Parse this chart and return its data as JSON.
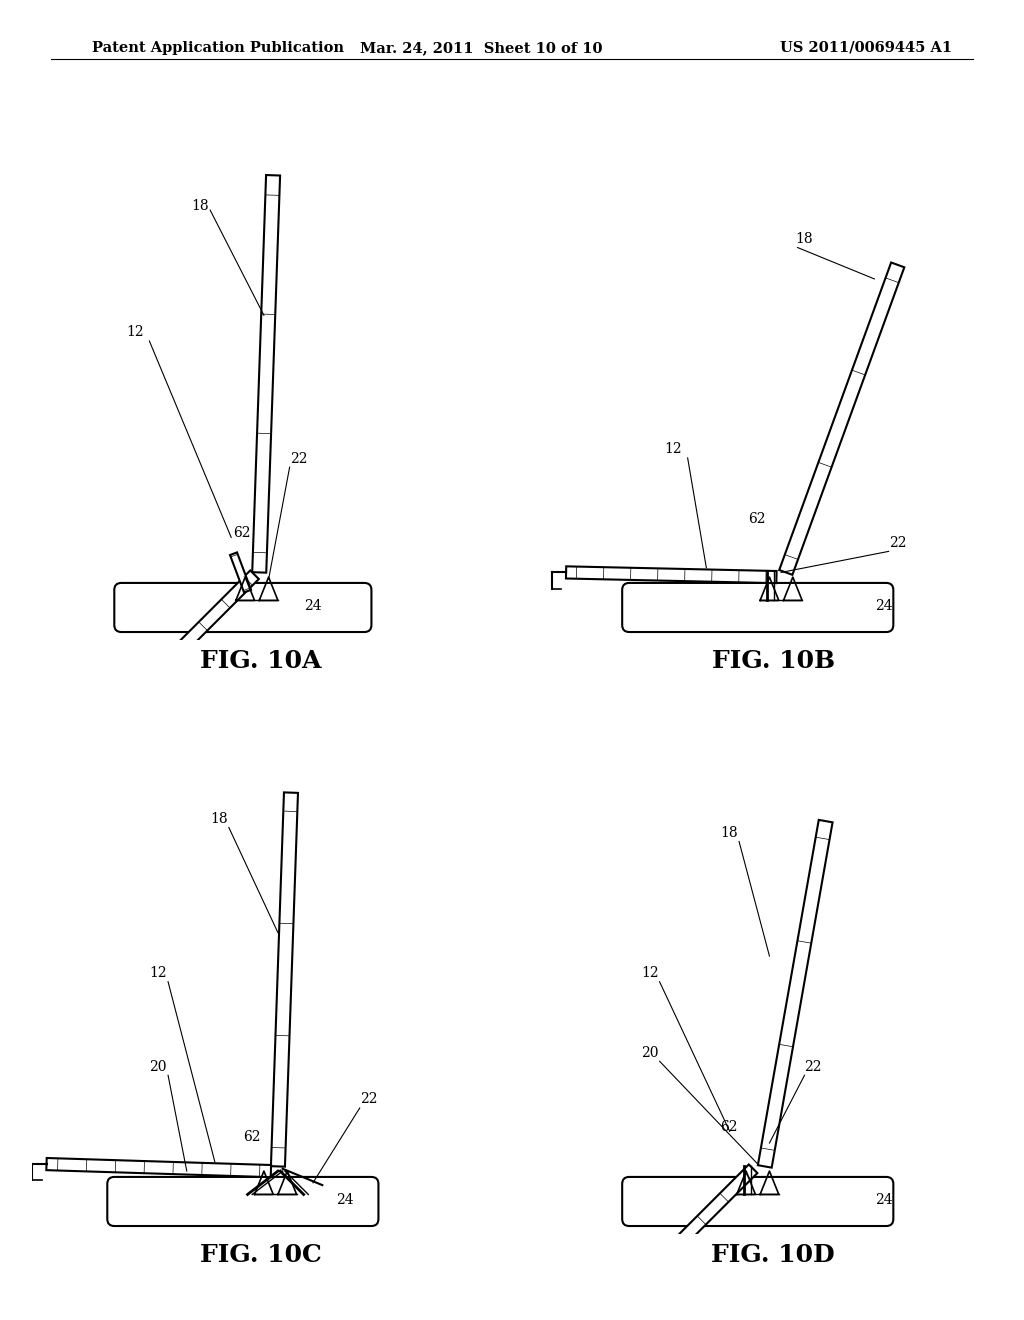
{
  "background_color": "#ffffff",
  "header_left": "Patent Application Publication",
  "header_center": "Mar. 24, 2011  Sheet 10 of 10",
  "header_right": "US 2011/0069445 A1",
  "header_fontsize": 10.5,
  "fig_labels": [
    "FIG. 10A",
    "FIG. 10B",
    "FIG. 10C",
    "FIG. 10D"
  ],
  "fig_label_fontsize": 18,
  "annotation_fontsize": 10
}
